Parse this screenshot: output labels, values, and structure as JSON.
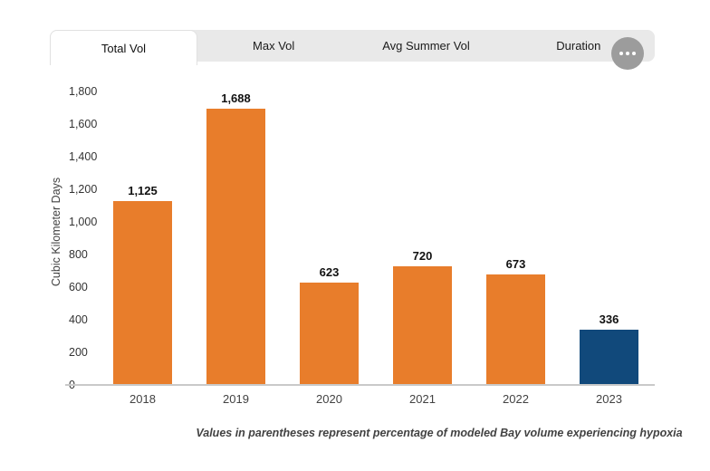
{
  "tabs": {
    "items": [
      {
        "label": "Total Vol",
        "active": true
      },
      {
        "label": "Max Vol",
        "active": false
      },
      {
        "label": "Avg Summer Vol",
        "active": false
      },
      {
        "label": "Duration",
        "active": false
      }
    ],
    "more_icon": "ellipsis-icon"
  },
  "chart_data": {
    "type": "bar",
    "title": "",
    "categories": [
      "2018",
      "2019",
      "2020",
      "2021",
      "2022",
      "2023"
    ],
    "values": [
      1125,
      1688,
      623,
      720,
      673,
      336
    ],
    "value_labels": [
      "1,125",
      "1,688",
      "623",
      "720",
      "673",
      "336"
    ],
    "bar_colors": [
      "#E87D2B",
      "#E87D2B",
      "#E87D2B",
      "#E87D2B",
      "#E87D2B",
      "#11497B"
    ],
    "xlabel": "",
    "ylabel": "Cubic Kilometer Days",
    "ylim": [
      0,
      1800
    ],
    "ytick_step": 200,
    "ytick_labels": [
      "0",
      "200",
      "400",
      "600",
      "800",
      "1,000",
      "1,200",
      "1,400",
      "1,600",
      "1,800"
    ],
    "grid": false,
    "legend": "none"
  },
  "footnote": "Values in parentheses represent percentage of modeled Bay volume experiencing hypoxia",
  "colors": {
    "bar_orange": "#E87D2B",
    "bar_blue": "#11497B",
    "tab_bar_bg": "#E9E9E9",
    "active_tab_bg": "#FFFFFF",
    "more_button_bg": "#9C9C9C",
    "axis_line": "#C9C9C9"
  }
}
